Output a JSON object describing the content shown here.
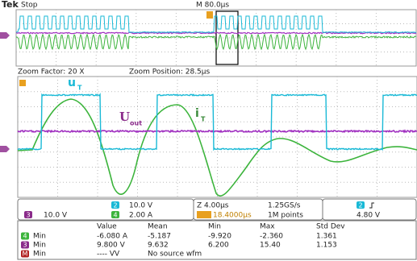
{
  "header": {
    "brand": "Tek",
    "status": "Stop",
    "timebase": "M 80.0µs"
  },
  "zoom": {
    "factor": "Zoom Factor: 20 X",
    "position": "Zoom Position: 28.5µs"
  },
  "labels": {
    "u": "u",
    "u_sub": "T",
    "uout": "U",
    "uout_sub": "out",
    "i": "i",
    "i_sub": "T"
  },
  "channels": [
    {
      "badge": "3",
      "scale": "10.0 V"
    },
    {
      "badge": "2",
      "scale": "10.0 V"
    },
    {
      "badge": "4",
      "scale": "2.00 A"
    }
  ],
  "horizontal": {
    "zoom": "Z 4.00µs",
    "trigger_pos": "18.4000µs",
    "sample_rate": "1.25GS/s",
    "record": "1M points",
    "trig_ch": "2",
    "trig_level": "4.80 V"
  },
  "measurements": {
    "headers": [
      "Value",
      "Mean",
      "Min",
      "Max",
      "Std Dev"
    ],
    "rows": [
      {
        "badge": "4",
        "label": "Min",
        "cells": [
          "-6.080 A",
          "-5.187",
          "-9.920",
          "-2.360",
          "1.361"
        ]
      },
      {
        "badge": "3",
        "label": "Min",
        "cells": [
          "9.800 V",
          "9.632",
          "6.200",
          "15.40",
          "1.153"
        ]
      },
      {
        "badge": "M",
        "label": "Min",
        "cells": [
          "---- VV",
          "No source wfm"
        ]
      }
    ]
  }
}
